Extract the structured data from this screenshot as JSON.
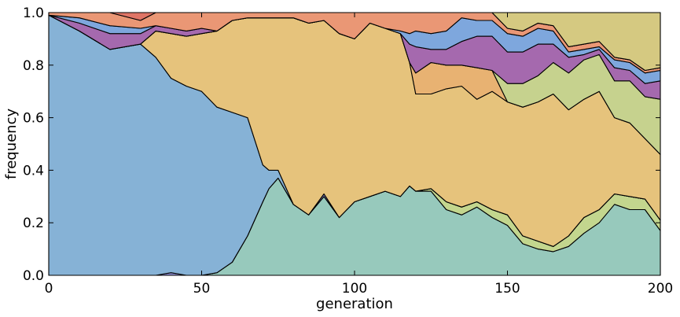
{
  "chart_data": {
    "type": "area",
    "stacked": true,
    "normalized": true,
    "title": "",
    "xlabel": "generation",
    "ylabel": "frequency",
    "xlim": [
      0,
      200
    ],
    "ylim": [
      0,
      1
    ],
    "x_ticks": [
      "0",
      "50",
      "100",
      "150",
      "200"
    ],
    "y_ticks": [
      "0.0",
      "0.2",
      "0.4",
      "0.6",
      "0.8",
      "1.0"
    ],
    "grid": false,
    "legend": "none",
    "x": [
      0,
      10,
      20,
      30,
      35,
      40,
      45,
      50,
      55,
      60,
      65,
      70,
      72,
      75,
      80,
      85,
      90,
      95,
      100,
      105,
      110,
      115,
      118,
      120,
      125,
      130,
      135,
      140,
      145,
      150,
      155,
      160,
      165,
      170,
      175,
      180,
      185,
      190,
      195,
      200
    ],
    "series": [
      {
        "color": "#97c9bc",
        "values": [
          0.0,
          0.0,
          0.0,
          0.0,
          0.0,
          0.0,
          0.0,
          0.0,
          0.01,
          0.05,
          0.15,
          0.28,
          0.33,
          0.37,
          0.27,
          0.23,
          0.3,
          0.22,
          0.28,
          0.3,
          0.32,
          0.3,
          0.34,
          0.32,
          0.32,
          0.25,
          0.23,
          0.26,
          0.22,
          0.19,
          0.12,
          0.1,
          0.09,
          0.11,
          0.16,
          0.2,
          0.27,
          0.25,
          0.25,
          0.17
        ]
      },
      {
        "color": "#c3d68e",
        "values": [
          0.0,
          0.0,
          0.0,
          0.0,
          0.0,
          0.0,
          0.0,
          0.0,
          0.0,
          0.0,
          0.0,
          0.0,
          0.0,
          0.0,
          0.0,
          0.0,
          0.0,
          0.0,
          0.0,
          0.0,
          0.0,
          0.0,
          0.0,
          0.0,
          0.01,
          0.03,
          0.03,
          0.02,
          0.03,
          0.04,
          0.03,
          0.03,
          0.02,
          0.04,
          0.06,
          0.05,
          0.04,
          0.05,
          0.04,
          0.04
        ]
      },
      {
        "color": "#8f8ed2",
        "values": [
          0.0,
          0.0,
          0.0,
          0.0,
          0.0,
          0.01,
          0.0,
          0.0,
          0.0,
          0.0,
          0.0,
          0.0,
          0.0,
          0.0,
          0.0,
          0.0,
          0.01,
          0.0,
          0.0,
          0.0,
          0.0,
          0.0,
          0.0,
          0.0,
          0.0,
          0.0,
          0.0,
          0.0,
          0.0,
          0.0,
          0.0,
          0.0,
          0.0,
          0.0,
          0.0,
          0.0,
          0.0,
          0.0,
          0.0,
          0.0
        ]
      },
      {
        "color": "#86b2d6",
        "values": [
          0.99,
          0.93,
          0.86,
          0.88,
          0.83,
          0.74,
          0.72,
          0.7,
          0.63,
          0.57,
          0.45,
          0.14,
          0.07,
          0.03,
          0.0,
          0.0,
          0.0,
          0.0,
          0.0,
          0.0,
          0.0,
          0.0,
          0.0,
          0.0,
          0.0,
          0.0,
          0.0,
          0.0,
          0.0,
          0.0,
          0.0,
          0.0,
          0.0,
          0.0,
          0.0,
          0.0,
          0.0,
          0.0,
          0.0,
          0.0
        ]
      },
      {
        "color": "#e6c37c",
        "values": [
          0.0,
          0.0,
          0.0,
          0.0,
          0.1,
          0.17,
          0.19,
          0.22,
          0.29,
          0.35,
          0.38,
          0.56,
          0.58,
          0.58,
          0.71,
          0.73,
          0.66,
          0.7,
          0.62,
          0.66,
          0.62,
          0.62,
          0.47,
          0.37,
          0.36,
          0.43,
          0.46,
          0.39,
          0.45,
          0.43,
          0.49,
          0.53,
          0.58,
          0.48,
          0.45,
          0.45,
          0.29,
          0.28,
          0.23,
          0.25
        ]
      },
      {
        "color": "#e8b272",
        "values": [
          0.0,
          0.0,
          0.0,
          0.0,
          0.0,
          0.0,
          0.0,
          0.0,
          0.0,
          0.0,
          0.0,
          0.0,
          0.0,
          0.0,
          0.0,
          0.0,
          0.0,
          0.0,
          0.0,
          0.0,
          0.0,
          0.0,
          0.0,
          0.08,
          0.12,
          0.09,
          0.08,
          0.12,
          0.08,
          0.0,
          0.0,
          0.0,
          0.0,
          0.0,
          0.0,
          0.0,
          0.0,
          0.0,
          0.0,
          0.0
        ]
      },
      {
        "color": "#c6d28e",
        "values": [
          0.0,
          0.0,
          0.0,
          0.0,
          0.0,
          0.0,
          0.0,
          0.0,
          0.0,
          0.0,
          0.0,
          0.0,
          0.0,
          0.0,
          0.0,
          0.0,
          0.0,
          0.0,
          0.0,
          0.0,
          0.0,
          0.0,
          0.0,
          0.0,
          0.0,
          0.0,
          0.0,
          0.0,
          0.0,
          0.07,
          0.09,
          0.1,
          0.12,
          0.14,
          0.15,
          0.14,
          0.14,
          0.16,
          0.16,
          0.21
        ]
      },
      {
        "color": "#a569ae",
        "values": [
          0.0,
          0.03,
          0.06,
          0.04,
          0.02,
          0.02,
          0.02,
          0.02,
          0.0,
          0.0,
          0.0,
          0.0,
          0.0,
          0.0,
          0.0,
          0.0,
          0.0,
          0.0,
          0.0,
          0.0,
          0.0,
          0.0,
          0.07,
          0.1,
          0.05,
          0.06,
          0.09,
          0.12,
          0.13,
          0.12,
          0.12,
          0.12,
          0.07,
          0.06,
          0.02,
          0.02,
          0.05,
          0.04,
          0.05,
          0.07
        ]
      },
      {
        "color": "#7ea7dd",
        "values": [
          0.0,
          0.02,
          0.03,
          0.02,
          0.0,
          0.0,
          0.0,
          0.0,
          0.0,
          0.0,
          0.0,
          0.0,
          0.0,
          0.0,
          0.0,
          0.0,
          0.0,
          0.0,
          0.0,
          0.0,
          0.0,
          0.01,
          0.04,
          0.06,
          0.06,
          0.07,
          0.09,
          0.06,
          0.06,
          0.07,
          0.06,
          0.06,
          0.05,
          0.02,
          0.02,
          0.01,
          0.03,
          0.03,
          0.04,
          0.04
        ]
      },
      {
        "color": "#ea9775",
        "values": [
          0.01,
          0.02,
          0.05,
          0.03,
          0.05,
          0.06,
          0.07,
          0.06,
          0.07,
          0.03,
          0.02,
          0.02,
          0.02,
          0.02,
          0.02,
          0.04,
          0.03,
          0.08,
          0.1,
          0.04,
          0.06,
          0.07,
          0.08,
          0.07,
          0.08,
          0.07,
          0.09,
          0.03,
          0.03,
          0.02,
          0.02,
          0.02,
          0.02,
          0.02,
          0.02,
          0.02,
          0.01,
          0.01,
          0.01,
          0.01
        ]
      },
      {
        "color": "#e07566",
        "values": [
          0.0,
          0.0,
          0.0,
          0.03,
          0.0,
          0.0,
          0.0,
          0.0,
          0.0,
          0.0,
          0.0,
          0.0,
          0.0,
          0.0,
          0.0,
          0.0,
          0.0,
          0.0,
          0.0,
          0.0,
          0.0,
          0.0,
          0.0,
          0.0,
          0.0,
          0.0,
          0.0,
          0.0,
          0.0,
          0.0,
          0.0,
          0.0,
          0.0,
          0.0,
          0.0,
          0.0,
          0.0,
          0.0,
          0.0,
          0.0
        ]
      },
      {
        "color": "#d5c981",
        "values": [
          0.0,
          0.0,
          0.0,
          0.0,
          0.0,
          0.0,
          0.0,
          0.0,
          0.0,
          0.0,
          0.0,
          0.0,
          0.0,
          0.0,
          0.0,
          0.0,
          0.0,
          0.0,
          0.0,
          0.0,
          0.0,
          0.0,
          0.0,
          0.0,
          0.0,
          0.0,
          0.0,
          0.0,
          0.0,
          0.06,
          0.07,
          0.04,
          0.05,
          0.13,
          0.12,
          0.11,
          0.17,
          0.18,
          0.22,
          0.25
        ]
      }
    ]
  }
}
